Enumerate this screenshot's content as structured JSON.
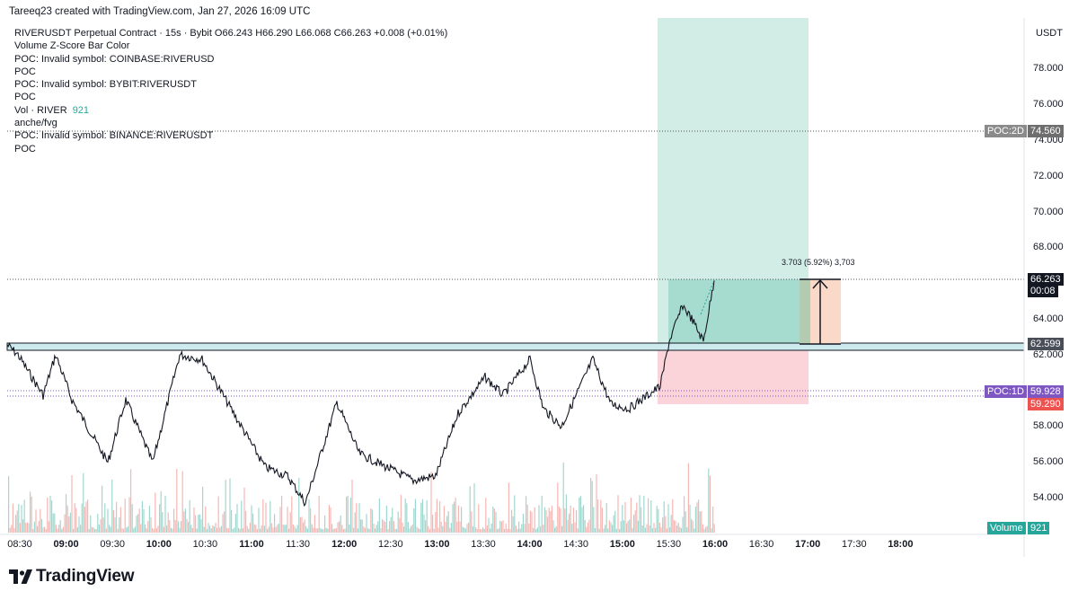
{
  "header": {
    "credit": "Tareeq23 created with TradingView.com, Jan 27, 2026 16:09 UTC"
  },
  "legend": {
    "main": "RIVERUSDT Perpetual Contract · 15s · Bybit  O66.243  H66.290  L66.068  C66.263  +0.008 (+0.01%)",
    "lines": [
      "Volume Z-Score Bar Color",
      "POC: Invalid symbol: COINBASE:RIVERUSD",
      "POC",
      "POC: Invalid symbol: BYBIT:RIVERUSDT",
      "POC"
    ],
    "vol_label": "Vol · RIVER",
    "vol_value": "921",
    "lines2": [
      "anche/fvg",
      "POC: Invalid symbol: BINANCE:RIVERUSDT",
      "POC"
    ]
  },
  "price_axis": {
    "currency": "USDT",
    "ticks": [
      "78.000",
      "76.000",
      "74.000",
      "72.000",
      "70.000",
      "68.000",
      "64.000",
      "62.000",
      "58.000",
      "56.000",
      "54.000"
    ],
    "labels": {
      "poc2d_name": "POC:2D",
      "poc2d_value": "74.560",
      "last_price": "66.263",
      "countdown": "00:08",
      "level": "62.599",
      "poc1d_name": "POC:1D",
      "poc1d_value": "59.928",
      "stop_value": "59.290",
      "volume_name": "Volume",
      "volume_value": "921"
    }
  },
  "time_axis": {
    "ticks": [
      {
        "label": "08:30",
        "bold": false
      },
      {
        "label": "09:00",
        "bold": true
      },
      {
        "label": "09:30",
        "bold": false
      },
      {
        "label": "10:00",
        "bold": true
      },
      {
        "label": "10:30",
        "bold": false
      },
      {
        "label": "11:00",
        "bold": true
      },
      {
        "label": "11:30",
        "bold": false
      },
      {
        "label": "12:00",
        "bold": true
      },
      {
        "label": "12:30",
        "bold": false
      },
      {
        "label": "13:00",
        "bold": true
      },
      {
        "label": "13:30",
        "bold": false
      },
      {
        "label": "14:00",
        "bold": true
      },
      {
        "label": "14:30",
        "bold": false
      },
      {
        "label": "15:00",
        "bold": true
      },
      {
        "label": "15:30",
        "bold": false
      },
      {
        "label": "16:00",
        "bold": true
      },
      {
        "label": "16:30",
        "bold": false
      },
      {
        "label": "17:00",
        "bold": true
      },
      {
        "label": "17:30",
        "bold": false
      },
      {
        "label": "18:00",
        "bold": true
      }
    ]
  },
  "measure": {
    "text": "3.703 (5.92%) 3,703"
  },
  "footer": {
    "brand": "TradingView"
  },
  "colors": {
    "profit_zone": "#d2ece6",
    "profit_fill": "#a6dccf",
    "loss_zone": "#fad4d9",
    "level_band": "#cdebee",
    "poc_purple": "#7e57c2",
    "poc_gray": "#808080",
    "up": "#26a69a",
    "down": "#ef5350",
    "measure_fill": "#fbd9c9"
  }
}
